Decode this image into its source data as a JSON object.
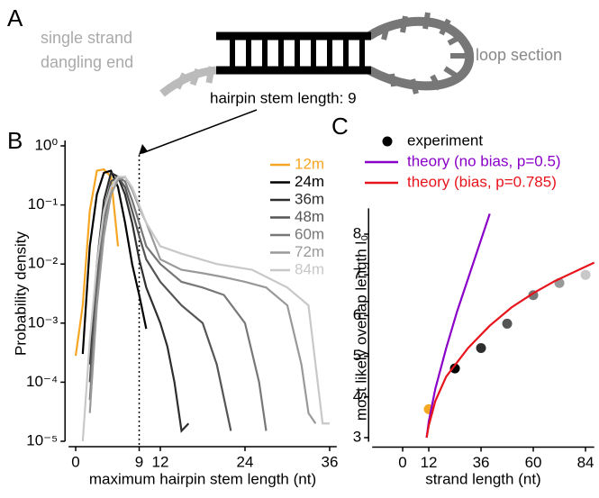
{
  "panel_labels": [
    "A",
    "B",
    "C"
  ],
  "diagram": {
    "left_label": [
      "single strand",
      "dangling end"
    ],
    "right_label": "loop section",
    "stem_label": "hairpin stem length: 9"
  },
  "chart_data": [
    {
      "type": "line",
      "log_y": true,
      "xlabel": "maximum hairpin stem length (nt)",
      "ylabel": "Probability density",
      "xlim": [
        -1,
        37
      ],
      "xticks": [
        0,
        9,
        12,
        24,
        36
      ],
      "vline": 9,
      "ylim": [
        1e-05,
        1
      ],
      "yticks": [
        {
          "value": 1,
          "label": "10⁰"
        },
        {
          "value": 0.1,
          "label": "10⁻¹"
        },
        {
          "value": 0.01,
          "label": "10⁻²"
        },
        {
          "value": 0.001,
          "label": "10⁻³"
        },
        {
          "value": 0.0001,
          "label": "10⁻⁴"
        },
        {
          "value": 1e-05,
          "label": "10⁻⁵"
        }
      ],
      "series": [
        {
          "name": "12m",
          "color": "#f5a623",
          "x": [
            0,
            1,
            2,
            3,
            4,
            5,
            6
          ],
          "values": [
            0.00028,
            0.002,
            0.08,
            0.38,
            0.4,
            0.3,
            0.02
          ]
        },
        {
          "name": "24m",
          "color": "#000000",
          "x": [
            1,
            2,
            3,
            4,
            5,
            6,
            7,
            8,
            9,
            10
          ],
          "values": [
            0.0003,
            0.02,
            0.15,
            0.35,
            0.38,
            0.2,
            0.05,
            0.01,
            0.003,
            0.0008
          ]
        },
        {
          "name": "36m",
          "color": "#2e2e2e",
          "x": [
            2,
            3,
            4,
            5,
            6,
            7,
            8,
            9,
            10,
            11,
            12,
            13,
            14,
            15,
            16
          ],
          "values": [
            0.0002,
            0.01,
            0.12,
            0.35,
            0.3,
            0.15,
            0.05,
            0.012,
            0.004,
            0.002,
            0.001,
            0.0004,
            0.0001,
            1.5e-05,
            2e-05
          ]
        },
        {
          "name": "48m",
          "color": "#555555",
          "x": [
            2,
            3,
            4,
            5,
            6,
            7,
            8,
            9,
            10,
            12,
            15,
            18,
            20,
            22
          ],
          "values": [
            0.0001,
            0.006,
            0.08,
            0.25,
            0.3,
            0.2,
            0.08,
            0.03,
            0.012,
            0.005,
            0.002,
            0.001,
            0.0002,
            1.5e-05
          ]
        },
        {
          "name": "60m",
          "color": "#777777",
          "x": [
            2,
            3,
            4,
            5,
            6,
            7,
            8,
            9,
            10,
            12,
            15,
            18,
            21,
            24,
            26,
            27
          ],
          "values": [
            5e-05,
            0.003,
            0.05,
            0.2,
            0.3,
            0.25,
            0.12,
            0.05,
            0.02,
            0.01,
            0.005,
            0.004,
            0.003,
            0.001,
            0.0001,
            1.5e-05
          ]
        },
        {
          "name": "72m",
          "color": "#999999",
          "x": [
            2,
            3,
            4,
            5,
            6,
            7,
            8,
            9,
            10,
            12,
            15,
            18,
            21,
            24,
            27,
            30,
            32,
            33,
            34
          ],
          "values": [
            3e-05,
            0.002,
            0.03,
            0.15,
            0.27,
            0.3,
            0.18,
            0.09,
            0.05,
            0.012,
            0.008,
            0.007,
            0.006,
            0.005,
            0.004,
            0.002,
            0.0002,
            3e-05,
            2e-05
          ]
        },
        {
          "name": "84m",
          "color": "#c8c8c8",
          "x": [
            1,
            2,
            3,
            4,
            5,
            6,
            7,
            8,
            9,
            10,
            12,
            15,
            20,
            25,
            30,
            33,
            35,
            36
          ],
          "values": [
            1e-05,
            0.0005,
            0.01,
            0.08,
            0.2,
            0.3,
            0.3,
            0.2,
            0.1,
            0.05,
            0.02,
            0.015,
            0.01,
            0.008,
            0.004,
            0.002,
            2e-05,
            2e-05
          ]
        }
      ]
    },
    {
      "type": "scatter",
      "xlabel": "strand length (nt)",
      "ylabel": "most likely overlap length l₀",
      "xlim": [
        -14,
        88
      ],
      "xticks": [
        0,
        12,
        36,
        60,
        84
      ],
      "ylim": [
        2.9,
        8.5
      ],
      "yticks": [
        3,
        4,
        5,
        6,
        7,
        8
      ],
      "series": [
        {
          "name": "experiment",
          "type": "scatter",
          "color": "#000000",
          "x": [
            12,
            24,
            36,
            48,
            60,
            72,
            84
          ],
          "values": [
            3.7,
            4.7,
            5.2,
            5.8,
            6.5,
            6.8,
            7.0
          ],
          "colors": [
            "#f5a623",
            "#000000",
            "#2e2e2e",
            "#555555",
            "#777777",
            "#999999",
            "#c8c8c8"
          ]
        },
        {
          "name": "theory (no bias, p=0.5)",
          "type": "line",
          "color": "#8a00c8",
          "x": [
            11,
            12,
            15,
            20,
            25,
            30,
            35,
            40
          ],
          "values": [
            3.0,
            3.4,
            4.2,
            5.2,
            6.1,
            6.9,
            7.7,
            8.5
          ]
        },
        {
          "name": "theory (bias, p=0.785)",
          "type": "line",
          "color": "#e8141c",
          "x": [
            11,
            12,
            15,
            20,
            30,
            40,
            50,
            60,
            70,
            80,
            88
          ],
          "values": [
            3.0,
            3.3,
            3.9,
            4.5,
            5.2,
            5.75,
            6.2,
            6.55,
            6.85,
            7.1,
            7.3
          ]
        }
      ]
    }
  ]
}
